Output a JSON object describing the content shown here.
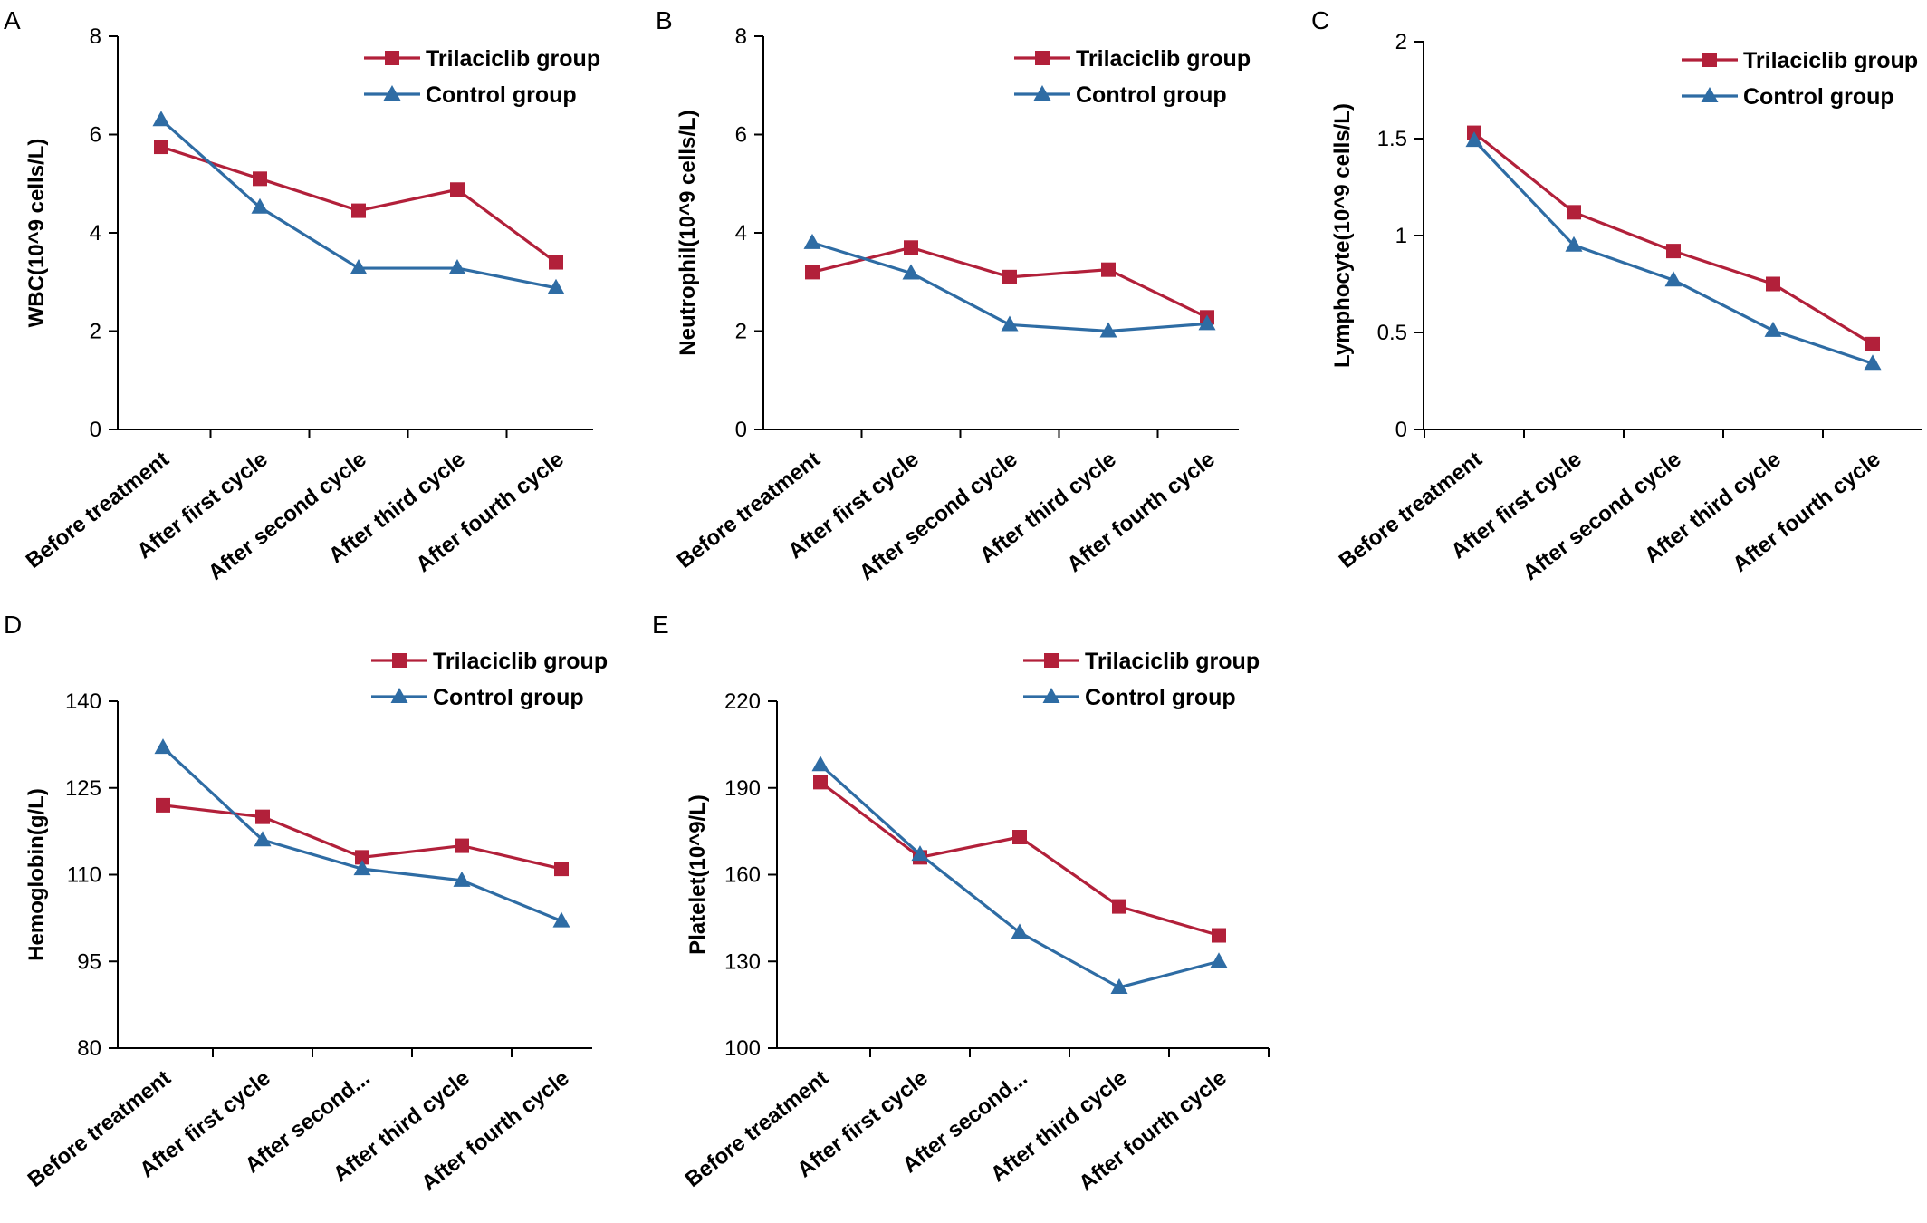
{
  "colors": {
    "trilaciclib": "#B2203A",
    "control": "#2E6CA4",
    "axis": "#000000"
  },
  "chart_data": [
    {
      "panel": "A",
      "type": "line",
      "categories": [
        "Before treatment",
        "After first cycle",
        "After second cycle",
        "After third cycle",
        "After fourth cycle"
      ],
      "ylabel": "WBC(10^9 cells/L)",
      "ylim": [
        0,
        8
      ],
      "yticks": [
        0,
        2,
        4,
        6,
        8
      ],
      "yticklabels": [
        "0",
        "2",
        "4",
        "6",
        "8"
      ],
      "legend_position": "top-right",
      "series": [
        {
          "name": "Trilaciclib group",
          "marker": "square",
          "values": [
            5.75,
            5.1,
            4.45,
            4.88,
            3.4
          ]
        },
        {
          "name": "Control group",
          "marker": "triangle",
          "values": [
            6.3,
            4.52,
            3.28,
            3.28,
            2.88
          ]
        }
      ]
    },
    {
      "panel": "B",
      "type": "line",
      "categories": [
        "Before treatment",
        "After first cycle",
        "After second cycle",
        "After third cycle",
        "After fourth cycle"
      ],
      "ylabel": "Neutrophil(10^9 cells/L)",
      "ylim": [
        0,
        8
      ],
      "yticks": [
        0,
        2,
        4,
        6,
        8
      ],
      "yticklabels": [
        "0",
        "2",
        "4",
        "6",
        "8"
      ],
      "legend_position": "top-right",
      "series": [
        {
          "name": "Trilaciclib group",
          "marker": "square",
          "values": [
            3.2,
            3.7,
            3.1,
            3.25,
            2.28
          ]
        },
        {
          "name": "Control group",
          "marker": "triangle",
          "values": [
            3.8,
            3.18,
            2.13,
            2.0,
            2.15
          ]
        }
      ]
    },
    {
      "panel": "C",
      "type": "line",
      "categories": [
        "Before treatment",
        "After first cycle",
        "After second cycle",
        "After third cycle",
        "After fourth cycle"
      ],
      "ylabel": "Lymphocyte(10^9 cells/L)",
      "ylim": [
        0,
        2
      ],
      "yticks": [
        0,
        0.5,
        1,
        1.5,
        2
      ],
      "yticklabels": [
        "0",
        "0.5",
        "1",
        "1.5",
        "2"
      ],
      "legend_position": "top-right",
      "series": [
        {
          "name": "Trilaciclib group",
          "marker": "square",
          "values": [
            1.53,
            1.12,
            0.92,
            0.75,
            0.44
          ]
        },
        {
          "name": "Control group",
          "marker": "triangle",
          "values": [
            1.49,
            0.95,
            0.77,
            0.51,
            0.34
          ]
        }
      ]
    },
    {
      "panel": "D",
      "type": "line",
      "categories": [
        "Before treatment",
        "After first cycle",
        "After second...",
        "After third cycle",
        "After fourth cycle"
      ],
      "ylabel": "Hemoglobin(g/L)",
      "ylim": [
        80,
        140
      ],
      "yticks": [
        80,
        95,
        110,
        125,
        140
      ],
      "yticklabels": [
        "80",
        "95",
        "110",
        "125",
        "140"
      ],
      "legend_position": "top-right",
      "series": [
        {
          "name": "Trilaciclib group",
          "marker": "square",
          "values": [
            122,
            120,
            113,
            115,
            111
          ]
        },
        {
          "name": "Control group",
          "marker": "triangle",
          "values": [
            132,
            116,
            111,
            109,
            102
          ]
        }
      ]
    },
    {
      "panel": "E",
      "type": "line",
      "categories": [
        "Before treatment",
        "After first cycle",
        "After second...",
        "After third cycle",
        "After fourth cycle"
      ],
      "ylabel": "Platelet(10^9/L)",
      "ylim": [
        100,
        220
      ],
      "yticks": [
        100,
        130,
        160,
        190,
        220
      ],
      "yticklabels": [
        "100",
        "130",
        "160",
        "190",
        "220"
      ],
      "legend_position": "top-right",
      "series": [
        {
          "name": "Trilaciclib group",
          "marker": "square",
          "values": [
            192,
            166,
            173,
            149,
            139
          ]
        },
        {
          "name": "Control group",
          "marker": "triangle",
          "values": [
            198,
            167,
            140,
            121,
            130
          ]
        }
      ]
    }
  ]
}
